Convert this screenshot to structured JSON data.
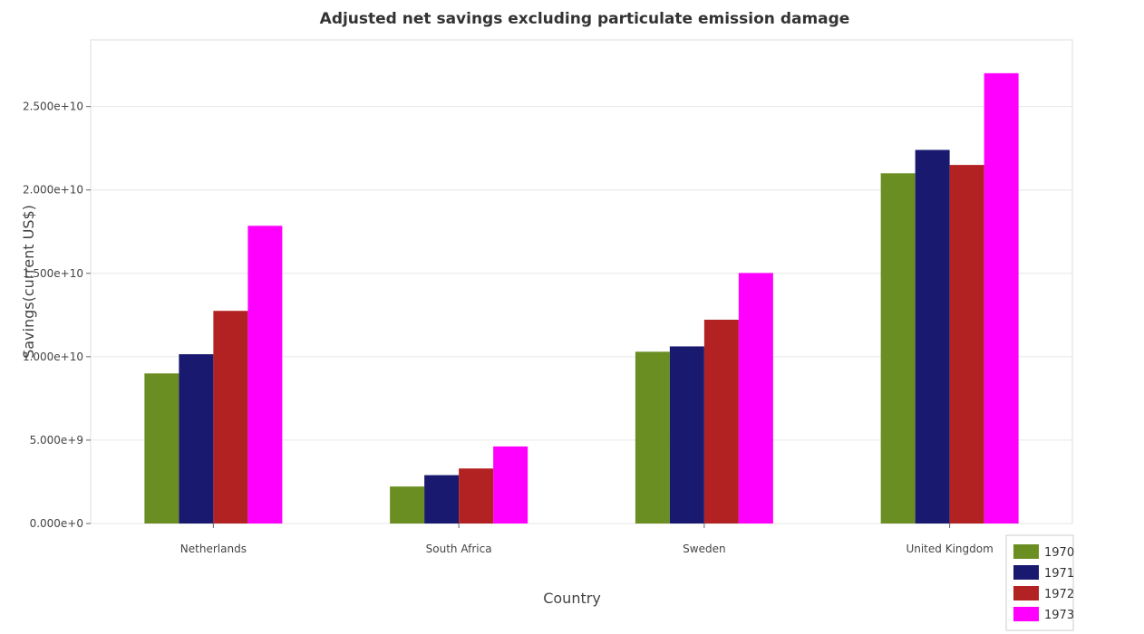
{
  "chart_data": {
    "type": "bar",
    "title": "Adjusted net savings excluding particulate emission damage",
    "xlabel": "Country",
    "ylabel": "Savings(current US$)",
    "categories": [
      "Netherlands",
      "South Africa",
      "Sweden",
      "United Kingdom"
    ],
    "series": [
      {
        "name": "1970",
        "color": "#6b8e23",
        "values": [
          9000000000.0,
          2220000000.0,
          10300000000.0,
          21000000000.0
        ]
      },
      {
        "name": "1971",
        "color": "#191970",
        "values": [
          10150000000.0,
          2900000000.0,
          10620000000.0,
          22400000000.0
        ]
      },
      {
        "name": "1972",
        "color": "#b22222",
        "values": [
          12750000000.0,
          3300000000.0,
          12220000000.0,
          21500000000.0
        ]
      },
      {
        "name": "1973",
        "color": "#ff00ff",
        "values": [
          17850000000.0,
          4620000000.0,
          15020000000.0,
          27000000000.0
        ]
      }
    ],
    "ylim": [
      0,
      29000000000.0
    ],
    "yticks": [
      0,
      5000000000.0,
      10000000000.0,
      15000000000.0,
      20000000000.0,
      25000000000.0
    ],
    "ytick_labels": [
      "0.000e+0",
      "5.000e+9",
      "1.000e+10",
      "1.500e+10",
      "2.000e+10",
      "2.500e+10"
    ],
    "grid": true,
    "legend_position": "bottom-right"
  }
}
